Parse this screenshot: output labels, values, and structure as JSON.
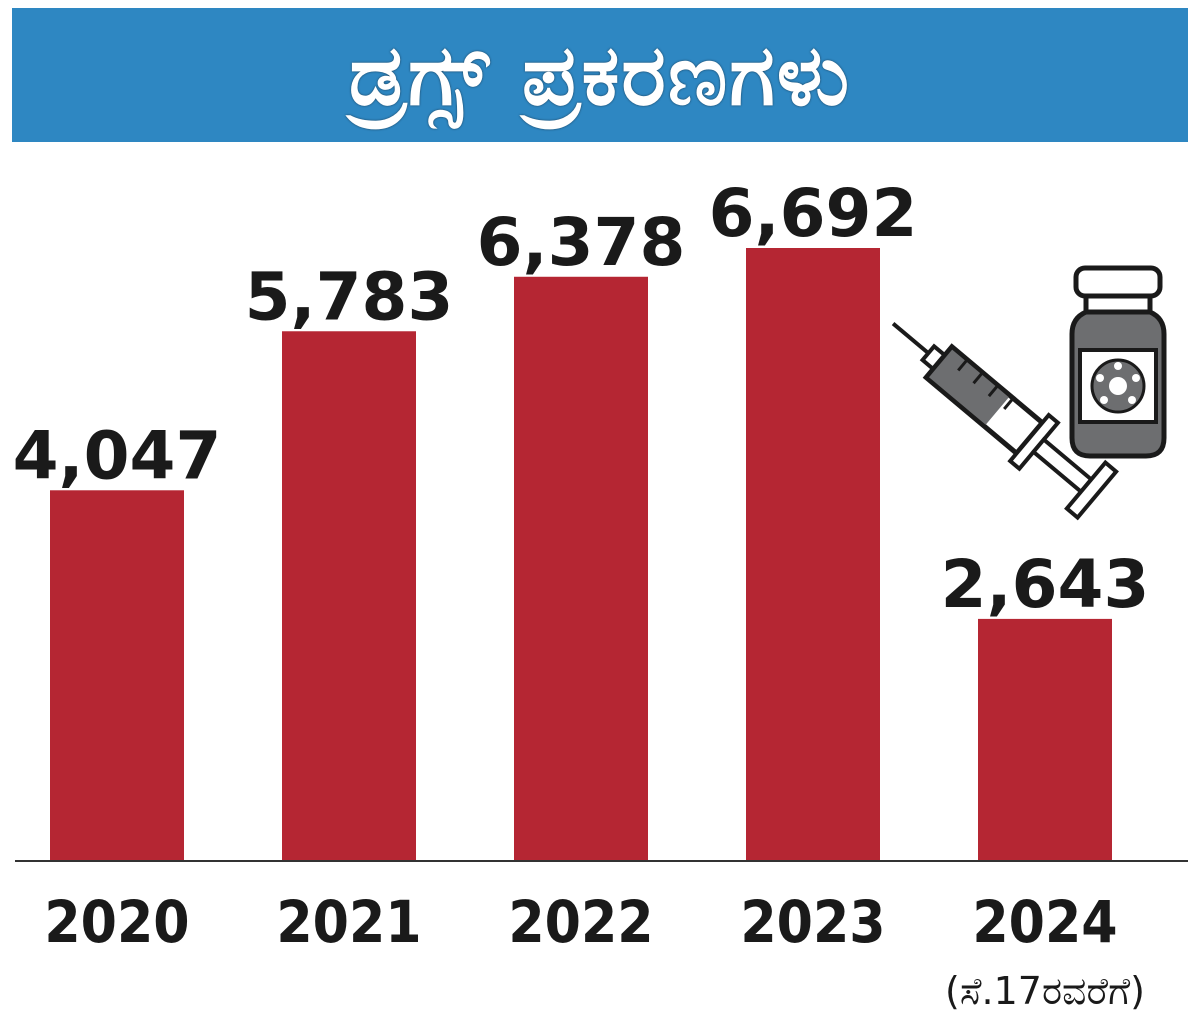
{
  "banner": {
    "title": "ಡ್ರಗ್ಸ್ ಪ್ರಕರಣಗಳು"
  },
  "colors": {
    "banner": "#2e87c2",
    "bar": "#b52633",
    "text": "#1a1a1a",
    "icon": "#6d6e70"
  },
  "icon": "syringe-and-vial-icon",
  "chart_data": {
    "type": "bar",
    "title": "ಡ್ರಗ್ಸ್ ಪ್ರಕರಣಗಳು",
    "categories": [
      "2020",
      "2021",
      "2022",
      "2023",
      "2024"
    ],
    "values": [
      4047,
      5783,
      6378,
      6692,
      2643
    ],
    "value_labels": [
      "4,047",
      "5,783",
      "6,378",
      "6,692",
      "2,643"
    ],
    "category_notes": [
      "",
      "",
      "",
      "",
      "(ಸೆ.17ರವರೆಗೆ)"
    ],
    "ylim": [
      0,
      6692
    ],
    "xlabel": "",
    "ylabel": "",
    "grid": false,
    "legend": "none"
  }
}
